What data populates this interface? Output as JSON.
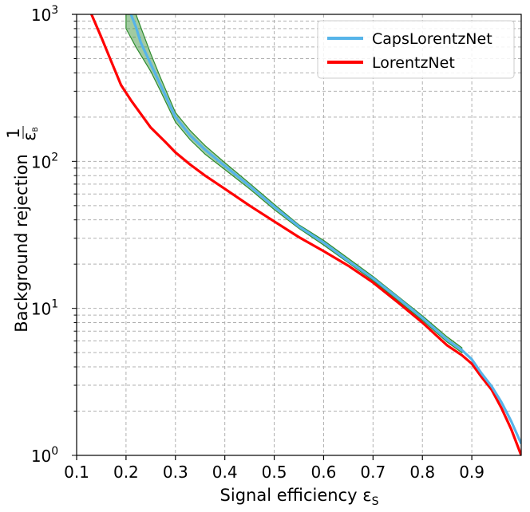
{
  "chart_data": {
    "type": "line",
    "xlabel": "Signal efficiency ε",
    "xlabel_sub": "S",
    "ylabel": "Background rejection ",
    "ylabel_frac_num": "1",
    "ylabel_frac_den": "ε",
    "ylabel_frac_den_sub": "B",
    "xlim": [
      0.1,
      1.0
    ],
    "ylim": [
      1,
      1000
    ],
    "yscale": "log",
    "grid": true,
    "legend_position": "top-right",
    "x_ticks": [
      "0.1",
      "0.2",
      "0.3",
      "0.4",
      "0.5",
      "0.6",
      "0.7",
      "0.8",
      "0.9"
    ],
    "y_ticks": [
      {
        "base": "10",
        "exp": "0"
      },
      {
        "base": "10",
        "exp": "1"
      },
      {
        "base": "10",
        "exp": "2"
      },
      {
        "base": "10",
        "exp": "3"
      }
    ],
    "series": [
      {
        "name": "CapsLorentzNet",
        "color": "#56b4e9",
        "x": [
          0.21,
          0.22,
          0.23,
          0.25,
          0.27,
          0.3,
          0.33,
          0.36,
          0.4,
          0.45,
          0.5,
          0.55,
          0.6,
          0.65,
          0.7,
          0.75,
          0.8,
          0.85,
          0.88,
          0.9,
          0.92,
          0.94,
          0.96,
          0.98,
          1.0
        ],
        "y": [
          1000,
          820,
          640,
          460,
          330,
          200,
          150,
          120,
          93,
          68,
          49,
          36,
          28,
          21,
          16,
          11.8,
          8.6,
          6.1,
          5.2,
          4.5,
          3.6,
          2.95,
          2.3,
          1.7,
          1.2
        ]
      },
      {
        "name": "LorentzNet",
        "color": "#ff0000",
        "x": [
          0.13,
          0.15,
          0.17,
          0.19,
          0.21,
          0.23,
          0.25,
          0.28,
          0.3,
          0.33,
          0.36,
          0.4,
          0.45,
          0.5,
          0.55,
          0.6,
          0.65,
          0.7,
          0.75,
          0.8,
          0.85,
          0.88,
          0.9,
          0.92,
          0.94,
          0.96,
          0.98,
          1.0
        ],
        "y": [
          1000,
          700,
          480,
          330,
          260,
          210,
          170,
          135,
          115,
          95,
          80,
          65,
          50,
          39,
          30.5,
          24.5,
          19.5,
          15,
          11,
          8,
          5.6,
          4.8,
          4.2,
          3.4,
          2.8,
          2.1,
          1.5,
          1.0
        ]
      }
    ],
    "band": {
      "color": "#2e8b2e",
      "x": [
        0.2,
        0.22,
        0.25,
        0.27,
        0.3,
        0.33,
        0.36,
        0.4,
        0.45,
        0.5,
        0.55,
        0.6,
        0.7,
        0.8,
        0.85,
        0.88
      ],
      "low": [
        800,
        600,
        410,
        300,
        185,
        140,
        112,
        88,
        65,
        47,
        35,
        27,
        15.5,
        8.3,
        5.9,
        5.0
      ],
      "high": [
        1000,
        1000,
        540,
        370,
        215,
        162,
        128,
        98,
        71,
        51,
        37,
        29,
        16.5,
        8.9,
        6.4,
        5.4
      ]
    }
  }
}
